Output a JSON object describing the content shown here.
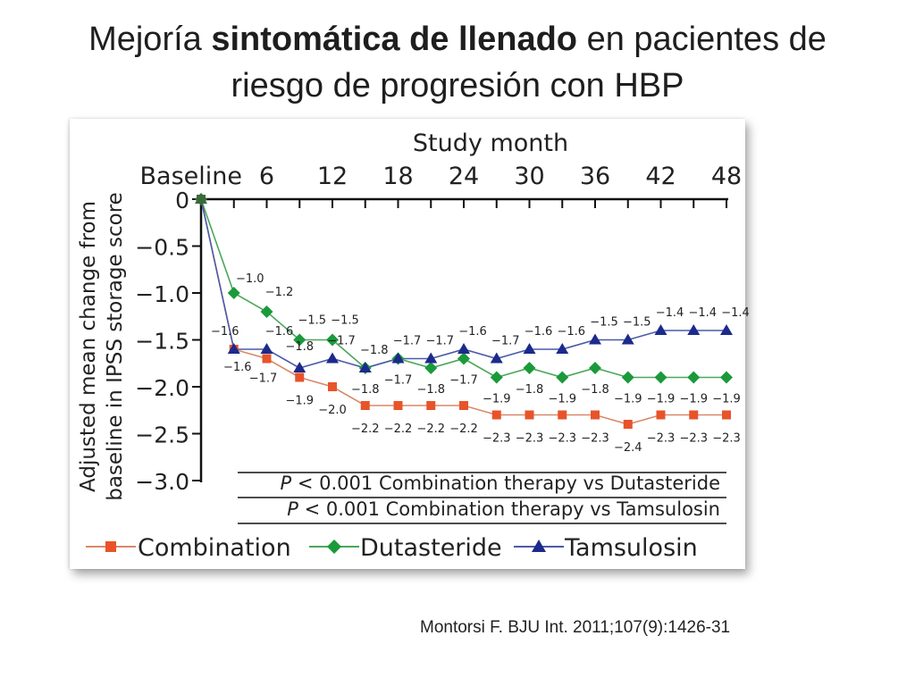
{
  "slide": {
    "title_part1": "Mejoría ",
    "title_bold": "sintomática de llenado",
    "title_part2": " en pacientes de",
    "title_line2": "riesgo de progresión con HBP",
    "citation": "Montorsi F. BJU Int. 2011;107(9):1426-31"
  },
  "colors": {
    "combination": "#e8532a",
    "dutasteride": "#1a9a3a",
    "tamsulosin": "#1c2a8c",
    "combination_line": "#d9896a",
    "dutasteride_line": "#4aa85a",
    "tamsulosin_line": "#4a5aa8"
  },
  "chart_data": {
    "type": "line",
    "title": "Study month",
    "xlabel": "Study month",
    "ylabel_line1": "Adjusted mean change from",
    "ylabel_line2": "baseline in IPSS storage score",
    "x": [
      0,
      3,
      6,
      9,
      12,
      15,
      18,
      21,
      24,
      27,
      30,
      33,
      36,
      39,
      42,
      45,
      48
    ],
    "xlim": [
      0,
      48
    ],
    "ylim": [
      -3.0,
      0
    ],
    "x_tick_labels": [
      "Baseline",
      "6",
      "12",
      "18",
      "24",
      "30",
      "36",
      "42",
      "48"
    ],
    "x_tick_values": [
      0,
      6,
      12,
      18,
      24,
      30,
      36,
      42,
      48
    ],
    "y_ticks": [
      0,
      -0.5,
      -1.0,
      -1.5,
      -2.0,
      -2.5,
      -3.0
    ],
    "y_tick_labels": [
      "0",
      "−0.5",
      "−1.0",
      "−1.5",
      "−2.0",
      "−2.5",
      "−3.0"
    ],
    "annotations": [
      {
        "prefix": "P",
        "text": " < 0.001 Combination therapy vs Dutasteride"
      },
      {
        "prefix": "P",
        "text": " < 0.001 Combination therapy vs Tamsulosin"
      }
    ],
    "legend_position": "bottom",
    "series": [
      {
        "name": "Combination",
        "marker": "square",
        "values": [
          0,
          -1.6,
          -1.7,
          -1.9,
          -2.0,
          -2.2,
          -2.2,
          -2.2,
          -2.2,
          -2.3,
          -2.3,
          -2.3,
          -2.3,
          -2.4,
          -2.3,
          -2.3,
          -2.3
        ],
        "labels": [
          "",
          "",
          "−1.7",
          "−1.9",
          "−2.0",
          "−2.2",
          "−2.2",
          "−2.2",
          "−2.2",
          "−2.3",
          "−2.3",
          "−2.3",
          "−2.3",
          "−2.4",
          "−2.3",
          "−2.3",
          "−2.3"
        ]
      },
      {
        "name": "Dutasteride",
        "marker": "diamond",
        "values": [
          0,
          -1.0,
          -1.2,
          -1.5,
          -1.5,
          -1.8,
          -1.7,
          -1.8,
          -1.7,
          -1.9,
          -1.8,
          -1.9,
          -1.8,
          -1.9,
          -1.9,
          -1.9,
          -1.9
        ],
        "labels": [
          "",
          "−1.0",
          "−1.2",
          "−1.5",
          "−1.5",
          "−1.8",
          "−1.7",
          "−1.8",
          "−1.7",
          "−1.9",
          "−1.8",
          "−1.9",
          "−1.8",
          "−1.9",
          "−1.9",
          "−1.9",
          "−1.9"
        ]
      },
      {
        "name": "Tamsulosin",
        "marker": "triangle",
        "values": [
          0,
          -1.6,
          -1.6,
          -1.8,
          -1.7,
          -1.8,
          -1.7,
          -1.7,
          -1.6,
          -1.7,
          -1.6,
          -1.6,
          -1.5,
          -1.5,
          -1.4,
          -1.4,
          -1.4
        ],
        "labels": [
          "",
          "−1.6",
          "−1.6",
          "−1.8",
          "−1.7",
          "−1.8",
          "−1.7",
          "−1.7",
          "−1.6",
          "−1.7",
          "−1.6",
          "−1.6",
          "−1.5",
          "−1.5",
          "−1.4",
          "−1.4",
          "−1.4"
        ]
      }
    ],
    "extra_labels": [
      {
        "series": "Combination",
        "index": 1,
        "text": "−1.6"
      }
    ]
  }
}
